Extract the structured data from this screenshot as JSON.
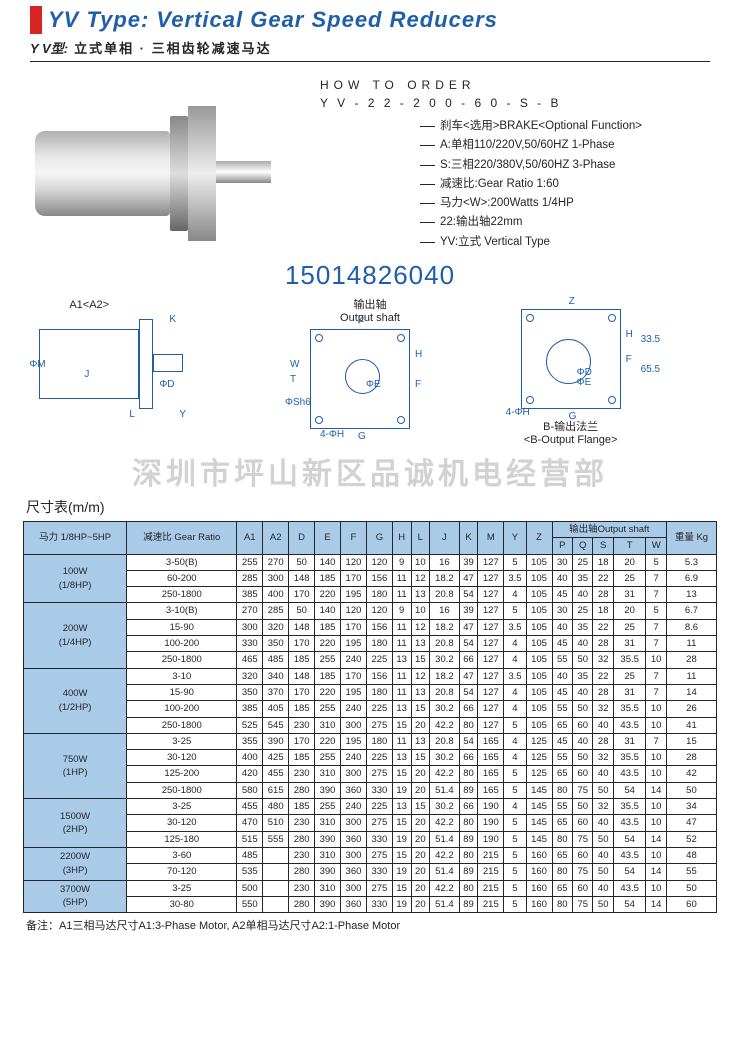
{
  "header": {
    "title_en": "YV Type: Vertical Gear Speed Reducers",
    "sub_bold": "Y V型:",
    "sub_text": "立式单相 · 三相齿轮减速马达"
  },
  "order": {
    "title": "HOW TO ORDER",
    "code": "Y V - 2 2 - 2 0 0 - 6 0 - S - B",
    "lines": [
      "刹车<选用>BRAKE<Optional Function>",
      "A:单相110/220V,50/60HZ 1-Phase",
      "S:三相220/380V,50/60HZ 3-Phase",
      "减速比:Gear Ratio 1:60",
      "马力<W>:200Watts 1/4HP",
      "22:输出轴22mm",
      "YV:立式 Vertical Type"
    ]
  },
  "phone": "15014826040",
  "drawings": {
    "cap1_top": "A1<A2>",
    "cap2_top": "输出轴",
    "cap2_bot": "Output shaft",
    "cap3_top": "B-输出法兰",
    "cap3_bot": "<B-Output Flange>"
  },
  "watermark": "深圳市坪山新区品诚机电经营部",
  "table": {
    "title": "尺寸表(m/m)",
    "headers": {
      "hp": "马力\n1/8HP~5HP",
      "ratio": "减速比\nGear Ratio",
      "a1": "A1",
      "a2": "A2",
      "d": "D",
      "e": "E",
      "f": "F",
      "g": "G",
      "h": "H",
      "l": "L",
      "j": "J",
      "k": "K",
      "m": "M",
      "y": "Y",
      "z": "Z",
      "out": "输出轴Output shaft",
      "wt": "重量\nKg",
      "p": "P",
      "q": "Q",
      "s": "S",
      "t": "T",
      "w": "W"
    },
    "groups": [
      {
        "label": "100W\n(1/8HP)",
        "rows": [
          [
            "3-50(B)",
            "255",
            "270",
            "50",
            "140",
            "120",
            "120",
            "9",
            "10",
            "16",
            "39",
            "127",
            "5",
            "105",
            "30",
            "25",
            "18",
            "20",
            "5",
            "5.3"
          ],
          [
            "60-200",
            "285",
            "300",
            "148",
            "185",
            "170",
            "156",
            "11",
            "12",
            "18.2",
            "47",
            "127",
            "3.5",
            "105",
            "40",
            "35",
            "22",
            "25",
            "7",
            "6.9"
          ],
          [
            "250-1800",
            "385",
            "400",
            "170",
            "220",
            "195",
            "180",
            "11",
            "13",
            "20.8",
            "54",
            "127",
            "4",
            "105",
            "45",
            "40",
            "28",
            "31",
            "7",
            "13"
          ]
        ]
      },
      {
        "label": "200W\n(1/4HP)",
        "rows": [
          [
            "3-10(B)",
            "270",
            "285",
            "50",
            "140",
            "120",
            "120",
            "9",
            "10",
            "16",
            "39",
            "127",
            "5",
            "105",
            "30",
            "25",
            "18",
            "20",
            "5",
            "6.7"
          ],
          [
            "15-90",
            "300",
            "320",
            "148",
            "185",
            "170",
            "156",
            "11",
            "12",
            "18.2",
            "47",
            "127",
            "3.5",
            "105",
            "40",
            "35",
            "22",
            "25",
            "7",
            "8.6"
          ],
          [
            "100-200",
            "330",
            "350",
            "170",
            "220",
            "195",
            "180",
            "11",
            "13",
            "20.8",
            "54",
            "127",
            "4",
            "105",
            "45",
            "40",
            "28",
            "31",
            "7",
            "11"
          ],
          [
            "250-1800",
            "465",
            "485",
            "185",
            "255",
            "240",
            "225",
            "13",
            "15",
            "30.2",
            "66",
            "127",
            "4",
            "105",
            "55",
            "50",
            "32",
            "35.5",
            "10",
            "28"
          ]
        ]
      },
      {
        "label": "400W\n(1/2HP)",
        "rows": [
          [
            "3-10",
            "320",
            "340",
            "148",
            "185",
            "170",
            "156",
            "11",
            "12",
            "18.2",
            "47",
            "127",
            "3.5",
            "105",
            "40",
            "35",
            "22",
            "25",
            "7",
            "11"
          ],
          [
            "15-90",
            "350",
            "370",
            "170",
            "220",
            "195",
            "180",
            "11",
            "13",
            "20.8",
            "54",
            "127",
            "4",
            "105",
            "45",
            "40",
            "28",
            "31",
            "7",
            "14"
          ],
          [
            "100-200",
            "385",
            "405",
            "185",
            "255",
            "240",
            "225",
            "13",
            "15",
            "30.2",
            "66",
            "127",
            "4",
            "105",
            "55",
            "50",
            "32",
            "35.5",
            "10",
            "26"
          ],
          [
            "250-1800",
            "525",
            "545",
            "230",
            "310",
            "300",
            "275",
            "15",
            "20",
            "42.2",
            "80",
            "127",
            "5",
            "105",
            "65",
            "60",
            "40",
            "43.5",
            "10",
            "41"
          ]
        ]
      },
      {
        "label": "750W\n(1HP)",
        "rows": [
          [
            "3-25",
            "355",
            "390",
            "170",
            "220",
            "195",
            "180",
            "11",
            "13",
            "20.8",
            "54",
            "165",
            "4",
            "125",
            "45",
            "40",
            "28",
            "31",
            "7",
            "15"
          ],
          [
            "30-120",
            "400",
            "425",
            "185",
            "255",
            "240",
            "225",
            "13",
            "15",
            "30.2",
            "66",
            "165",
            "4",
            "125",
            "55",
            "50",
            "32",
            "35.5",
            "10",
            "28"
          ],
          [
            "125-200",
            "420",
            "455",
            "230",
            "310",
            "300",
            "275",
            "15",
            "20",
            "42.2",
            "80",
            "165",
            "5",
            "125",
            "65",
            "60",
            "40",
            "43.5",
            "10",
            "42"
          ],
          [
            "250-1800",
            "580",
            "615",
            "280",
            "390",
            "360",
            "330",
            "19",
            "20",
            "51.4",
            "89",
            "165",
            "5",
            "145",
            "80",
            "75",
            "50",
            "54",
            "14",
            "50"
          ]
        ]
      },
      {
        "label": "1500W\n(2HP)",
        "rows": [
          [
            "3-25",
            "455",
            "480",
            "185",
            "255",
            "240",
            "225",
            "13",
            "15",
            "30.2",
            "66",
            "190",
            "4",
            "145",
            "55",
            "50",
            "32",
            "35.5",
            "10",
            "34"
          ],
          [
            "30-120",
            "470",
            "510",
            "230",
            "310",
            "300",
            "275",
            "15",
            "20",
            "42.2",
            "80",
            "190",
            "5",
            "145",
            "65",
            "60",
            "40",
            "43.5",
            "10",
            "47"
          ],
          [
            "125-180",
            "515",
            "555",
            "280",
            "390",
            "360",
            "330",
            "19",
            "20",
            "51.4",
            "89",
            "190",
            "5",
            "145",
            "80",
            "75",
            "50",
            "54",
            "14",
            "52"
          ]
        ]
      },
      {
        "label": "2200W\n(3HP)",
        "rows": [
          [
            "3-60",
            "485",
            "",
            "230",
            "310",
            "300",
            "275",
            "15",
            "20",
            "42.2",
            "80",
            "215",
            "5",
            "160",
            "65",
            "60",
            "40",
            "43.5",
            "10",
            "48"
          ],
          [
            "70-120",
            "535",
            "",
            "280",
            "390",
            "360",
            "330",
            "19",
            "20",
            "51.4",
            "89",
            "215",
            "5",
            "160",
            "80",
            "75",
            "50",
            "54",
            "14",
            "55"
          ]
        ]
      },
      {
        "label": "3700W\n(5HP)",
        "rows": [
          [
            "3-25",
            "500",
            "",
            "230",
            "310",
            "300",
            "275",
            "15",
            "20",
            "42.2",
            "80",
            "215",
            "5",
            "160",
            "65",
            "60",
            "40",
            "43.5",
            "10",
            "50"
          ],
          [
            "30-80",
            "550",
            "",
            "280",
            "390",
            "360",
            "330",
            "19",
            "20",
            "51.4",
            "89",
            "215",
            "5",
            "160",
            "80",
            "75",
            "50",
            "54",
            "14",
            "60"
          ]
        ]
      }
    ],
    "note": "备注：A1三相马达尺寸A1:3-Phase Motor, A2单相马达尺寸A2:1-Phase Motor"
  }
}
